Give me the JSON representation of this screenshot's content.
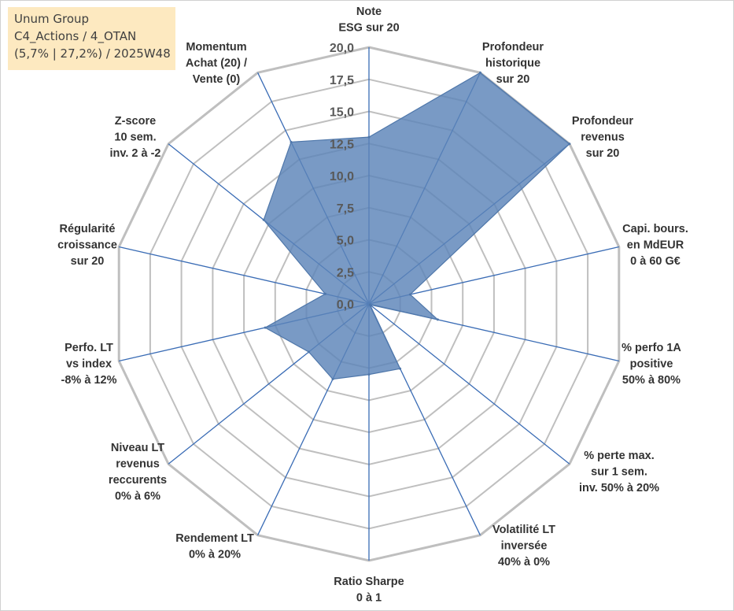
{
  "info": {
    "line1": "Unum Group",
    "line2": "C4_Actions / 4_OTAN",
    "line3": "(5,7% | 27,2%) / 2025W48"
  },
  "chart_data": {
    "type": "radar",
    "title": "Unum Group",
    "rmin": 0,
    "rmax": 20,
    "tick_step": 2.5,
    "tick_labels": [
      "0,0",
      "2,5",
      "5,0",
      "7,5",
      "10,0",
      "12,5",
      "15,0",
      "17,5",
      "20,0"
    ],
    "axes": [
      {
        "lines": [
          "Note",
          "ESG sur 20"
        ]
      },
      {
        "lines": [
          "Profondeur",
          "historique",
          "sur 20"
        ]
      },
      {
        "lines": [
          "Profondeur",
          "revenus",
          "sur 20"
        ]
      },
      {
        "lines": [
          "Capi. bours.",
          "en MdEUR",
          "0 à 60 G€"
        ]
      },
      {
        "lines": [
          "% perfo 1A",
          "positive",
          "50% à 80%"
        ]
      },
      {
        "lines": [
          "% perte max.",
          "sur 1 sem.",
          "inv. 50% à 20%"
        ]
      },
      {
        "lines": [
          "Volatilité LT",
          "inversée",
          "40% à 0%"
        ]
      },
      {
        "lines": [
          "Ratio Sharpe",
          "0 à 1"
        ]
      },
      {
        "lines": [
          "Rendement LT",
          "0% à 20%"
        ]
      },
      {
        "lines": [
          "Niveau LT",
          "revenus",
          "reccurents",
          "0% à 6%"
        ]
      },
      {
        "lines": [
          "Perfo. LT",
          "vs index",
          "-8% à 12%"
        ]
      },
      {
        "lines": [
          "Régularité",
          "croissance",
          "sur 20"
        ]
      },
      {
        "lines": [
          "Z-score",
          "10 sem.",
          "inv. 2 à -2"
        ]
      },
      {
        "lines": [
          "Momentum",
          "Achat (20) /",
          "Vente (0)"
        ]
      }
    ],
    "series": [
      {
        "name": "Unum Group",
        "color": "#5b84b8",
        "values": [
          13.0,
          20.0,
          20.0,
          3.3,
          5.5,
          0.1,
          5.6,
          5.5,
          6.5,
          6.0,
          8.3,
          3.5,
          10.5,
          14.0
        ]
      }
    ],
    "colors": {
      "grid": "#bfbfbf",
      "spoke": "#3a6cb5",
      "fill": "#5b84b8",
      "fill_stroke": "#4f77aa"
    }
  }
}
